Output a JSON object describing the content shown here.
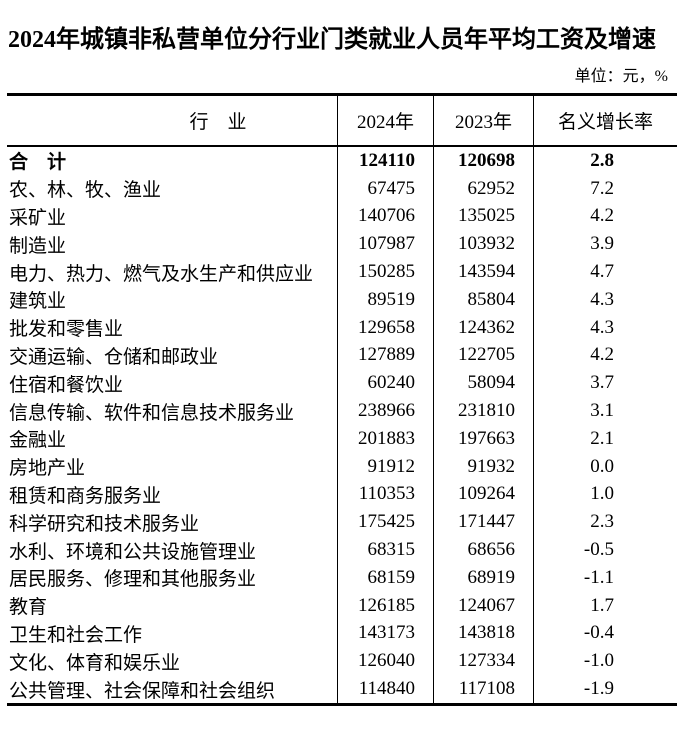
{
  "title": "2024年城镇非私营单位分行业门类就业人员年平均工资及增速",
  "unit_note": "单位：元，%",
  "colors": {
    "text": "#000000",
    "background": "#ffffff",
    "table_border": "#000000"
  },
  "table": {
    "columns": [
      "行　业",
      "2024年",
      "2023年",
      "名义增长率"
    ],
    "rows": [
      {
        "industry": "合　计",
        "y2024": 124110,
        "y2023": 120698,
        "growth": "2.8",
        "bold": true
      },
      {
        "industry": "农、林、牧、渔业",
        "y2024": 67475,
        "y2023": 62952,
        "growth": "7.2",
        "bold": false
      },
      {
        "industry": "采矿业",
        "y2024": 140706,
        "y2023": 135025,
        "growth": "4.2",
        "bold": false
      },
      {
        "industry": "制造业",
        "y2024": 107987,
        "y2023": 103932,
        "growth": "3.9",
        "bold": false
      },
      {
        "industry": "电力、热力、燃气及水生产和供应业",
        "y2024": 150285,
        "y2023": 143594,
        "growth": "4.7",
        "bold": false
      },
      {
        "industry": "建筑业",
        "y2024": 89519,
        "y2023": 85804,
        "growth": "4.3",
        "bold": false
      },
      {
        "industry": "批发和零售业",
        "y2024": 129658,
        "y2023": 124362,
        "growth": "4.3",
        "bold": false
      },
      {
        "industry": "交通运输、仓储和邮政业",
        "y2024": 127889,
        "y2023": 122705,
        "growth": "4.2",
        "bold": false
      },
      {
        "industry": "住宿和餐饮业",
        "y2024": 60240,
        "y2023": 58094,
        "growth": "3.7",
        "bold": false
      },
      {
        "industry": "信息传输、软件和信息技术服务业",
        "y2024": 238966,
        "y2023": 231810,
        "growth": "3.1",
        "bold": false
      },
      {
        "industry": "金融业",
        "y2024": 201883,
        "y2023": 197663,
        "growth": "2.1",
        "bold": false
      },
      {
        "industry": "房地产业",
        "y2024": 91912,
        "y2023": 91932,
        "growth": "0.0",
        "bold": false
      },
      {
        "industry": "租赁和商务服务业",
        "y2024": 110353,
        "y2023": 109264,
        "growth": "1.0",
        "bold": false
      },
      {
        "industry": "科学研究和技术服务业",
        "y2024": 175425,
        "y2023": 171447,
        "growth": "2.3",
        "bold": false
      },
      {
        "industry": "水利、环境和公共设施管理业",
        "y2024": 68315,
        "y2023": 68656,
        "growth": "-0.5",
        "bold": false
      },
      {
        "industry": "居民服务、修理和其他服务业",
        "y2024": 68159,
        "y2023": 68919,
        "growth": "-1.1",
        "bold": false
      },
      {
        "industry": "教育",
        "y2024": 126185,
        "y2023": 124067,
        "growth": "1.7",
        "bold": false
      },
      {
        "industry": "卫生和社会工作",
        "y2024": 143173,
        "y2023": 143818,
        "growth": "-0.4",
        "bold": false
      },
      {
        "industry": "文化、体育和娱乐业",
        "y2024": 126040,
        "y2023": 127334,
        "growth": "-1.0",
        "bold": false
      },
      {
        "industry": "公共管理、社会保障和社会组织",
        "y2024": 114840,
        "y2023": 117108,
        "growth": "-1.9",
        "bold": false
      }
    ]
  }
}
